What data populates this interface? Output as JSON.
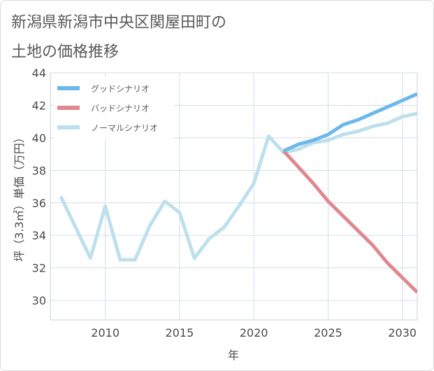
{
  "title": {
    "line1": "新潟県新潟市中央区関屋田町の",
    "line2": "土地の価格推移"
  },
  "chart_data": {
    "type": "line",
    "xlabel": "年",
    "ylabel": "坪（3.3㎡）単価（万円）",
    "xlim": [
      2006.3,
      2031
    ],
    "ylim": [
      28.8,
      44
    ],
    "xticks": [
      2010,
      2015,
      2020,
      2025,
      2030
    ],
    "yticks": [
      30,
      32,
      34,
      36,
      38,
      40,
      42,
      44
    ],
    "grid": true,
    "legend_position": "top-left",
    "series": [
      {
        "name": "グッドシナリオ",
        "color": "#6cb7ec",
        "x": [
          2022,
          2023,
          2024,
          2025,
          2026,
          2027,
          2028,
          2029,
          2030,
          2031
        ],
        "y": [
          39.2,
          39.6,
          39.85,
          40.2,
          40.8,
          41.1,
          41.5,
          41.9,
          42.3,
          42.7
        ]
      },
      {
        "name": "バッドシナリオ",
        "color": "#e0878f",
        "x": [
          2022,
          2023,
          2024,
          2025,
          2026,
          2027,
          2028,
          2029,
          2030,
          2031
        ],
        "y": [
          39.2,
          38.2,
          37.2,
          36.1,
          35.2,
          34.3,
          33.4,
          32.3,
          31.4,
          30.5
        ]
      },
      {
        "name": "ノーマルシナリオ",
        "color": "#bde0ec",
        "x": [
          2007,
          2008,
          2009,
          2010,
          2011,
          2012,
          2013,
          2014,
          2015,
          2016,
          2017,
          2018,
          2019,
          2020,
          2021,
          2022,
          2023,
          2024,
          2025,
          2026,
          2027,
          2028,
          2029,
          2030,
          2031
        ],
        "y": [
          36.4,
          34.5,
          32.6,
          35.8,
          32.5,
          32.5,
          34.6,
          36.1,
          35.4,
          32.6,
          33.8,
          34.5,
          35.8,
          37.2,
          40.1,
          39.1,
          39.3,
          39.7,
          39.85,
          40.2,
          40.4,
          40.7,
          40.9,
          41.3,
          41.5
        ]
      }
    ]
  }
}
